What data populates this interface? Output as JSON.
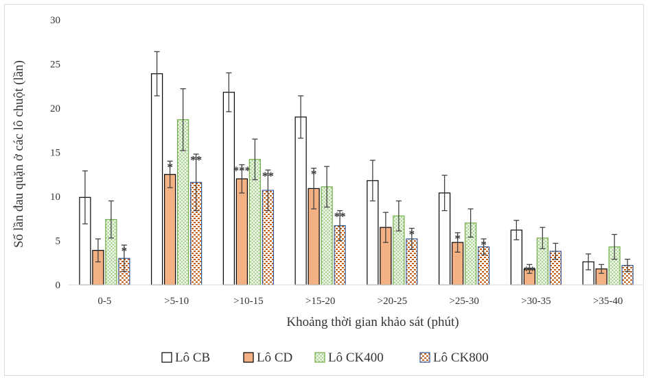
{
  "chart_data": {
    "type": "bar",
    "title": "",
    "xlabel": "Khoảng thời gian khảo sát (phút)",
    "ylabel": "Số lần đau quặn ở các lô chuột (lần)",
    "ylim": [
      0,
      30
    ],
    "yticks": [
      "0",
      "5",
      "10",
      "15",
      "20",
      "25",
      "30"
    ],
    "grid": false,
    "legend_position": "bottom",
    "categories": [
      "0-5",
      ">5-10",
      ">10-15",
      ">15-20",
      ">20-25",
      ">25-30",
      ">30-35",
      ">35-40"
    ],
    "series": [
      {
        "name": "Lô CB",
        "pattern": "solid",
        "fill": "#ffffff",
        "stroke": "#000000",
        "values": [
          9.9,
          23.9,
          21.8,
          19.0,
          11.8,
          10.4,
          6.2,
          2.6
        ],
        "errors": [
          3.0,
          2.5,
          2.2,
          2.4,
          2.3,
          2.0,
          1.1,
          0.9
        ],
        "significance": [
          "",
          "",
          "",
          "",
          "",
          "",
          "",
          ""
        ]
      },
      {
        "name": "Lô CD",
        "pattern": "solid",
        "fill": "#f4b183",
        "stroke": "#000000",
        "values": [
          3.9,
          12.5,
          12.0,
          10.9,
          6.5,
          4.8,
          1.8,
          1.8
        ],
        "errors": [
          1.3,
          1.5,
          1.6,
          2.3,
          1.7,
          1.1,
          0.5,
          0.5
        ],
        "significance": [
          "",
          "*",
          "***",
          "*",
          "",
          "*",
          "**",
          ""
        ]
      },
      {
        "name": "Lô CK400",
        "pattern": "crosshatch",
        "fill": "#a9d18e",
        "stroke": "#70ad47",
        "values": [
          7.4,
          18.7,
          14.2,
          11.1,
          7.8,
          7.0,
          5.3,
          4.3
        ],
        "errors": [
          2.1,
          3.5,
          2.3,
          2.3,
          1.7,
          1.6,
          1.2,
          1.4
        ],
        "significance": [
          "",
          "",
          "",
          "",
          "",
          "",
          "",
          ""
        ]
      },
      {
        "name": "Lô CK800",
        "pattern": "dots",
        "fill": "#c55a11",
        "stroke": "#2f5597",
        "values": [
          3.0,
          11.6,
          10.7,
          6.7,
          5.2,
          4.3,
          3.8,
          2.2
        ],
        "errors": [
          1.5,
          3.2,
          2.3,
          1.7,
          1.2,
          0.9,
          0.9,
          0.7
        ],
        "significance": [
          "*",
          "**",
          "**",
          "**",
          "*",
          "*",
          "",
          ""
        ]
      }
    ]
  }
}
